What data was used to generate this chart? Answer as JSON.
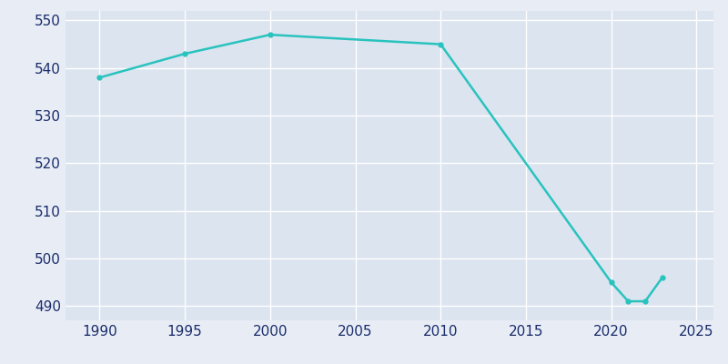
{
  "years": [
    1990,
    1995,
    2000,
    2010,
    2020,
    2021,
    2022,
    2023
  ],
  "population": [
    538,
    543,
    547,
    545,
    495,
    491,
    491,
    496
  ],
  "line_color": "#29C3BE",
  "background_color": "#e8edf5",
  "plot_bg_color": "#dce4f0",
  "grid_color": "#ffffff",
  "text_color": "#1a2c6b",
  "xlim": [
    1988,
    2026
  ],
  "ylim": [
    487,
    552
  ],
  "yticks": [
    490,
    500,
    510,
    520,
    530,
    540,
    550
  ],
  "xticks": [
    1990,
    1995,
    2000,
    2005,
    2010,
    2015,
    2020,
    2025
  ],
  "line_width": 1.8,
  "marker": "o",
  "marker_size": 3.5
}
